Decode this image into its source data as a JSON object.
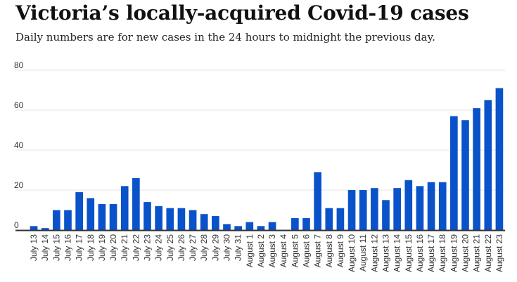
{
  "title": "Victoria’s locally-acquired Covid-19 cases",
  "subtitle": "Daily numbers are for new cases in the 24 hours to midnight the previous day.",
  "chart_data": {
    "type": "bar",
    "title": "Victoria’s locally-acquired Covid-19 cases",
    "subtitle": "Daily numbers are for new cases in the 24 hours to midnight the previous day.",
    "xlabel": "",
    "ylabel": "",
    "ylim": [
      0,
      80
    ],
    "yticks": [
      0,
      20,
      40,
      60,
      80
    ],
    "grid": true,
    "bar_color": "#0a52c9",
    "categories": [
      "July 13",
      "July 14",
      "July 15",
      "July 16",
      "July 17",
      "July 18",
      "July 19",
      "July 20",
      "July 21",
      "July 22",
      "July 23",
      "July 24",
      "July 25",
      "July 26",
      "July 27",
      "July 28",
      "July 29",
      "July 30",
      "July 31",
      "August 1",
      "August 2",
      "August 3",
      "August 4",
      "August 5",
      "August 6",
      "August 7",
      "August 8",
      "August 9",
      "August 10",
      "August 11",
      "August 12",
      "August 13",
      "August 14",
      "August 15",
      "August 16",
      "August 17",
      "August 18",
      "August 19",
      "August 20",
      "August 21",
      "August 22",
      "August 23"
    ],
    "values": [
      2,
      1,
      10,
      10,
      19,
      16,
      13,
      13,
      22,
      26,
      14,
      12,
      11,
      11,
      10,
      8,
      7,
      3,
      2,
      4,
      2,
      4,
      0,
      6,
      6,
      29,
      11,
      11,
      20,
      20,
      21,
      15,
      21,
      25,
      22,
      24,
      24,
      57,
      55,
      61,
      65,
      71
    ]
  }
}
